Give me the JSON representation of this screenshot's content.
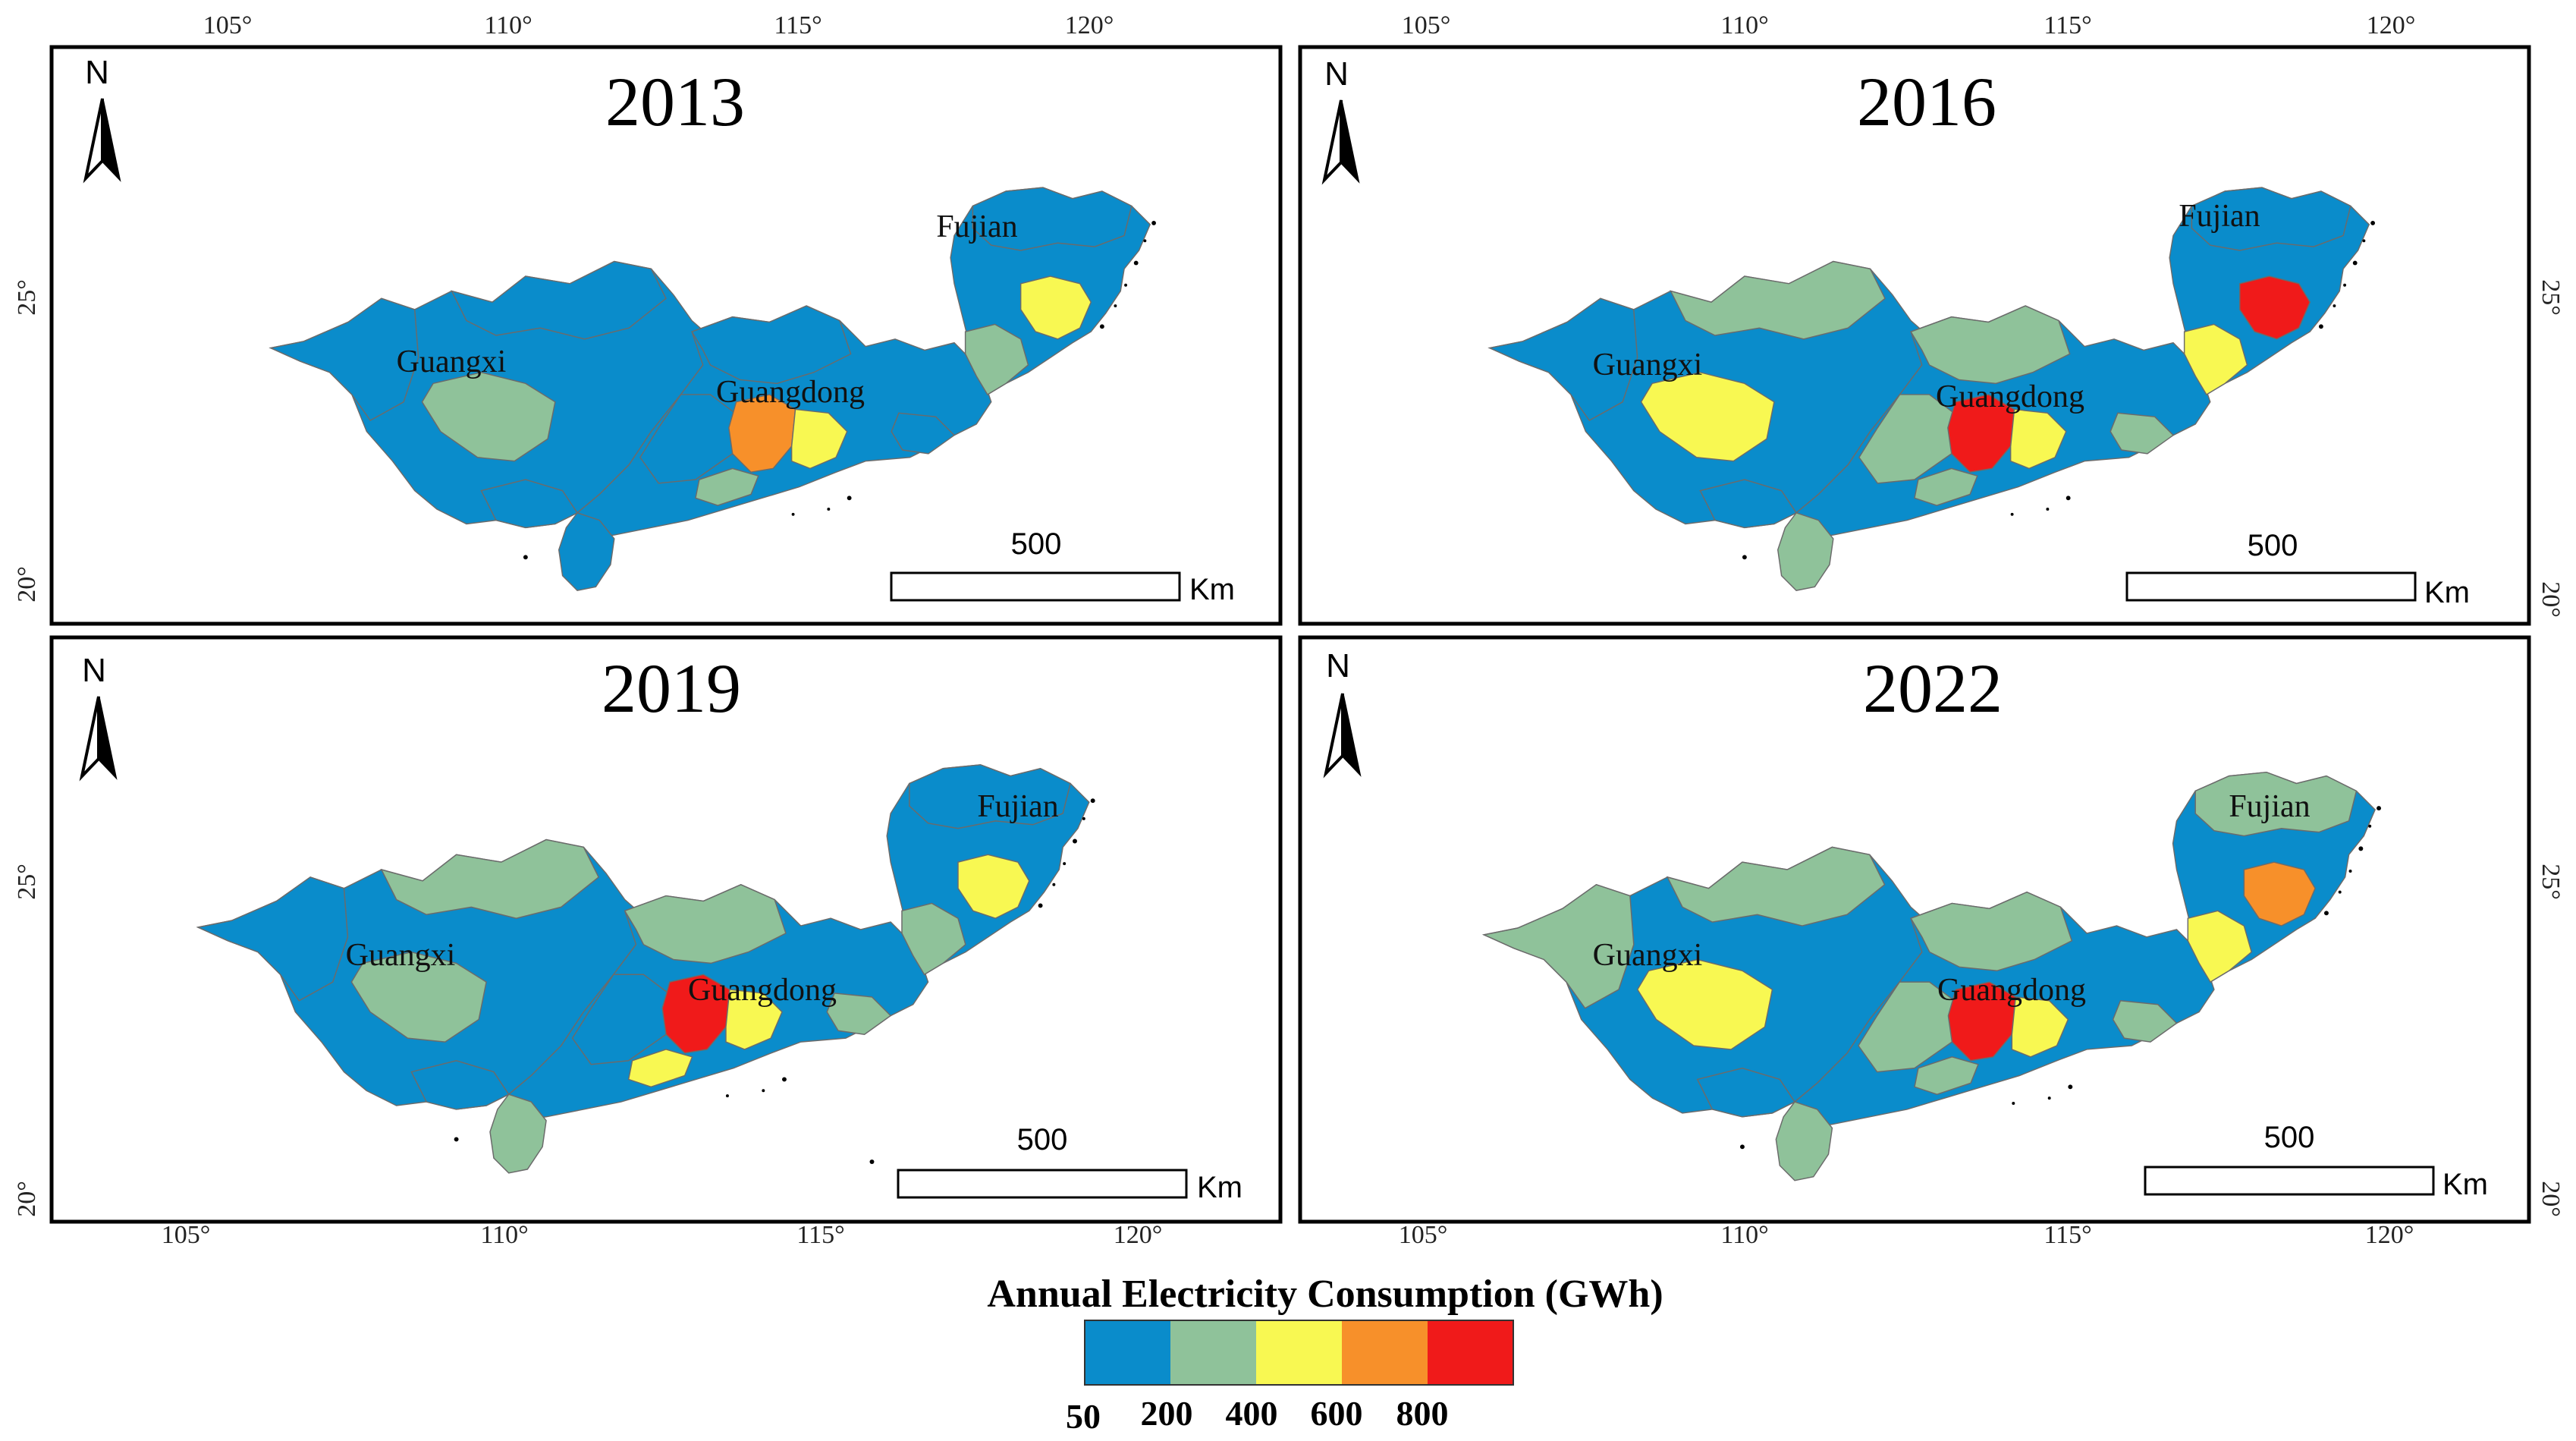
{
  "colors": {
    "c50": "#0a8ccb",
    "c200": "#8fc29a",
    "c400": "#f8f852",
    "c600": "#f7902a",
    "c800": "#f01a1a"
  },
  "axes": {
    "lon_ticks": [
      "105°",
      "110°",
      "115°",
      "120°"
    ],
    "lat_ticks": [
      "25°",
      "20°"
    ]
  },
  "panels": [
    {
      "year": "2013",
      "provinces": {
        "guangxi": "Guangxi",
        "guangdong": "Guangdong",
        "fujian": "Fujian"
      },
      "scale": {
        "value": "500",
        "unit": "Km"
      },
      "north": "N",
      "classes": {
        "gx_base": "c50",
        "gx_west": "c50",
        "gx_north": "c50",
        "gx_nanning": "c200",
        "gx_south": "c50",
        "gd_base": "c50",
        "gd_north": "c50",
        "gd_west": "c50",
        "gd_core": "c600",
        "gd_east1": "c400",
        "gd_south": "c200",
        "gd_east": "c50",
        "gd_hainan": "c50",
        "fj_base": "c50",
        "fj_north": "c50",
        "fj_fuzhou": "c400",
        "fj_south": "c200"
      }
    },
    {
      "year": "2016",
      "provinces": {
        "guangxi": "Guangxi",
        "guangdong": "Guangdong",
        "fujian": "Fujian"
      },
      "scale": {
        "value": "500",
        "unit": "Km"
      },
      "north": "N",
      "classes": {
        "gx_base": "c50",
        "gx_west": "c50",
        "gx_north": "c200",
        "gx_nanning": "c400",
        "gx_south": "c50",
        "gd_base": "c50",
        "gd_north": "c200",
        "gd_west": "c200",
        "gd_core": "c800",
        "gd_east1": "c400",
        "gd_south": "c200",
        "gd_east": "c200",
        "gd_hainan": "c200",
        "fj_base": "c50",
        "fj_north": "c50",
        "fj_fuzhou": "c800",
        "fj_south": "c400"
      }
    },
    {
      "year": "2019",
      "provinces": {
        "guangxi": "Guangxi",
        "guangdong": "Guangdong",
        "fujian": "Fujian"
      },
      "scale": {
        "value": "500",
        "unit": "Km"
      },
      "north": "N",
      "classes": {
        "gx_base": "c50",
        "gx_west": "c50",
        "gx_north": "c200",
        "gx_nanning": "c200",
        "gx_south": "c50",
        "gd_base": "c50",
        "gd_north": "c200",
        "gd_west": "c50",
        "gd_core": "c800",
        "gd_east1": "c400",
        "gd_south": "c400",
        "gd_east": "c200",
        "gd_hainan": "c200",
        "fj_base": "c50",
        "fj_north": "c50",
        "fj_fuzhou": "c400",
        "fj_south": "c200"
      }
    },
    {
      "year": "2022",
      "provinces": {
        "guangxi": "Guangxi",
        "guangdong": "Guangdong",
        "fujian": "Fujian"
      },
      "scale": {
        "value": "500",
        "unit": "Km"
      },
      "north": "N",
      "classes": {
        "gx_base": "c50",
        "gx_west": "c200",
        "gx_north": "c200",
        "gx_nanning": "c400",
        "gx_south": "c50",
        "gd_base": "c50",
        "gd_north": "c200",
        "gd_west": "c200",
        "gd_core": "c800",
        "gd_east1": "c400",
        "gd_south": "c200",
        "gd_east": "c200",
        "gd_hainan": "c200",
        "fj_base": "c50",
        "fj_north": "c200",
        "fj_fuzhou": "c600",
        "fj_south": "c400"
      }
    }
  ],
  "legend": {
    "title": "Annual Electricity Consumption (GWh)",
    "ticks": [
      "50",
      "200",
      "400",
      "600",
      "800"
    ],
    "swatches": [
      "c50",
      "c200",
      "c400",
      "c600",
      "c800"
    ]
  }
}
